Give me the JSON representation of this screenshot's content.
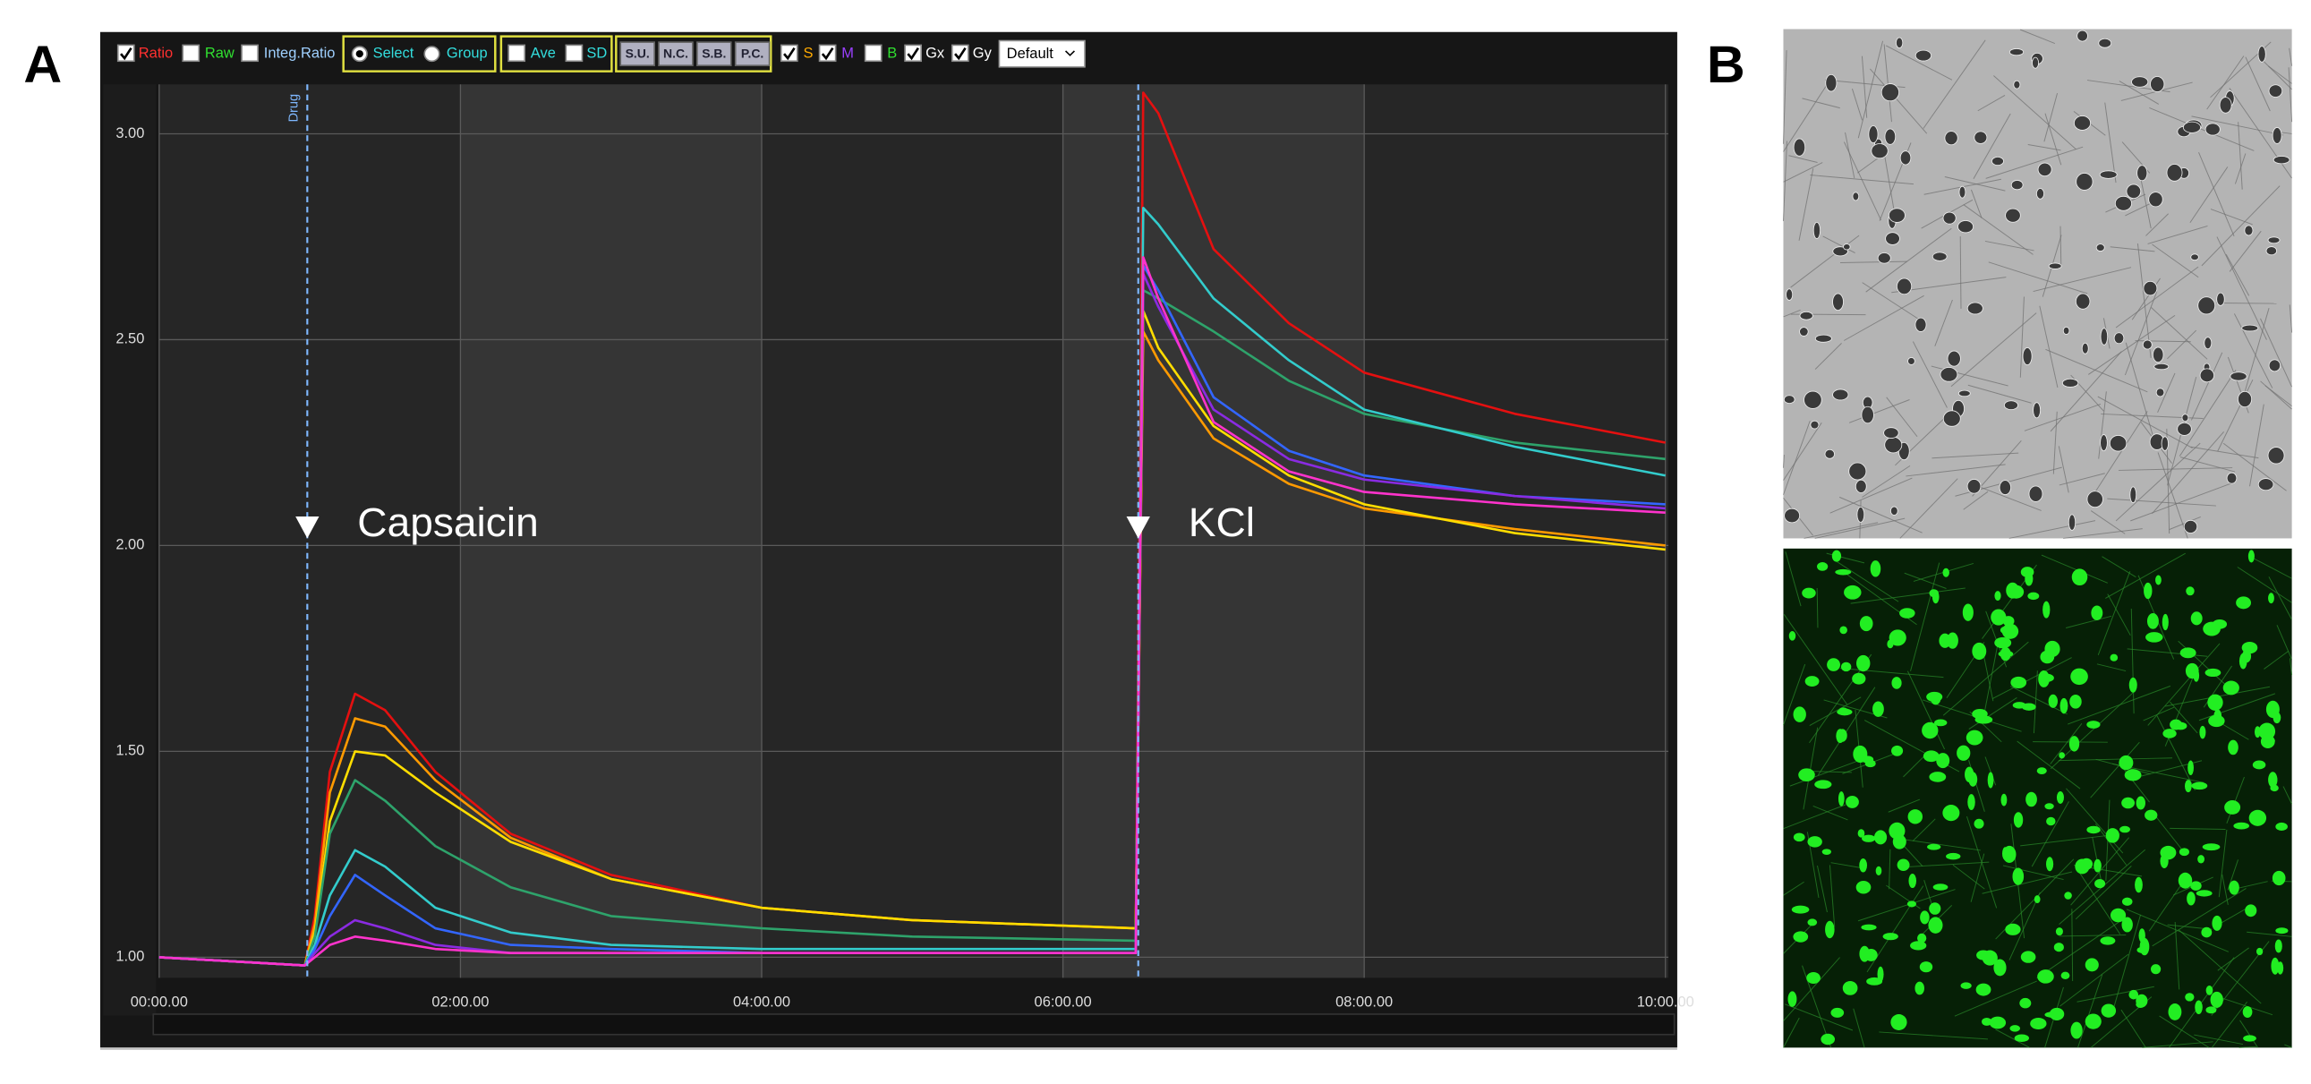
{
  "panel_labels": [
    "A",
    "B"
  ],
  "toolbar": {
    "display_options": [
      {
        "label": "Ratio",
        "checked": true
      },
      {
        "label": "Raw",
        "checked": false
      },
      {
        "label": "Integ.Ratio",
        "checked": false
      }
    ],
    "mode_options": {
      "options": [
        "Select",
        "Group"
      ],
      "selected": 0
    },
    "stat_options": [
      {
        "label": "Ave",
        "checked": false
      },
      {
        "label": "SD",
        "checked": false
      }
    ],
    "buttons": [
      "S.U.",
      "N.C.",
      "S.B.",
      "P.C."
    ],
    "channel_options": [
      {
        "label": "S",
        "checked": true
      },
      {
        "label": "M",
        "checked": true
      },
      {
        "label": "B",
        "checked": false
      },
      {
        "label": "Gx",
        "checked": true
      },
      {
        "label": "Gy",
        "checked": true
      }
    ],
    "dropdown": "Default"
  },
  "chart_data": {
    "type": "line",
    "x": [
      0,
      58,
      62,
      68,
      78,
      90,
      110,
      140,
      180,
      240,
      300,
      389,
      392,
      398,
      420,
      450,
      480,
      540,
      600
    ],
    "xlim": [
      0,
      600
    ],
    "xticks": [
      {
        "value": 0,
        "label": "00:00.00"
      },
      {
        "value": 120,
        "label": "02:00.00"
      },
      {
        "value": 240,
        "label": "04:00.00"
      },
      {
        "value": 360,
        "label": "06:00.00"
      },
      {
        "value": 480,
        "label": "08:00.00"
      },
      {
        "value": 600,
        "label": "10:00.00"
      }
    ],
    "ylim": [
      0.95,
      3.12
    ],
    "yticks": [
      {
        "value": 1,
        "label": "1.00"
      },
      {
        "value": 1.5,
        "label": "1.50"
      },
      {
        "value": 2,
        "label": "2.00"
      },
      {
        "value": 2.5,
        "label": "2.50"
      },
      {
        "value": 3,
        "label": "3.00"
      }
    ],
    "grid": true,
    "marker_label": "Drug",
    "annotations": [
      {
        "x": 59,
        "label": "Capsaicin"
      },
      {
        "x": 390,
        "label": "KCl"
      }
    ],
    "series": [
      {
        "color": "#e41010",
        "values": [
          1.0,
          0.98,
          1.1,
          1.45,
          1.64,
          1.6,
          1.45,
          1.3,
          1.2,
          1.12,
          1.09,
          1.07,
          3.1,
          3.05,
          2.72,
          2.54,
          2.42,
          2.32,
          2.25
        ]
      },
      {
        "color": "#ff9a00",
        "values": [
          1.0,
          0.98,
          1.08,
          1.4,
          1.58,
          1.56,
          1.43,
          1.29,
          1.19,
          1.12,
          1.09,
          1.07,
          2.52,
          2.45,
          2.26,
          2.15,
          2.09,
          2.04,
          2.0
        ]
      },
      {
        "color": "#ffdd00",
        "values": [
          1.0,
          0.98,
          1.06,
          1.33,
          1.5,
          1.49,
          1.4,
          1.28,
          1.19,
          1.12,
          1.09,
          1.07,
          2.57,
          2.48,
          2.29,
          2.17,
          2.1,
          2.03,
          1.99
        ]
      },
      {
        "color": "#2ea36b",
        "values": [
          1.0,
          0.98,
          1.05,
          1.3,
          1.43,
          1.38,
          1.27,
          1.17,
          1.1,
          1.07,
          1.05,
          1.04,
          2.62,
          2.6,
          2.52,
          2.4,
          2.32,
          2.25,
          2.21
        ]
      },
      {
        "color": "#33cccc",
        "values": [
          1.0,
          0.98,
          1.03,
          1.15,
          1.26,
          1.22,
          1.12,
          1.06,
          1.03,
          1.02,
          1.02,
          1.02,
          2.82,
          2.78,
          2.6,
          2.45,
          2.33,
          2.24,
          2.17
        ]
      },
      {
        "color": "#3366ff",
        "values": [
          1.0,
          0.98,
          1.02,
          1.1,
          1.2,
          1.15,
          1.07,
          1.03,
          1.02,
          1.01,
          1.01,
          1.01,
          2.68,
          2.62,
          2.36,
          2.23,
          2.17,
          2.12,
          2.1
        ]
      },
      {
        "color": "#8a2be2",
        "values": [
          1.0,
          0.98,
          1.01,
          1.05,
          1.09,
          1.07,
          1.03,
          1.01,
          1.01,
          1.01,
          1.01,
          1.01,
          2.66,
          2.58,
          2.33,
          2.21,
          2.16,
          2.12,
          2.09
        ]
      },
      {
        "color": "#ff33cc",
        "values": [
          1.0,
          0.98,
          1.0,
          1.03,
          1.05,
          1.04,
          1.02,
          1.01,
          1.01,
          1.01,
          1.01,
          1.01,
          2.7,
          2.6,
          2.3,
          2.18,
          2.13,
          2.1,
          2.08
        ]
      }
    ]
  }
}
